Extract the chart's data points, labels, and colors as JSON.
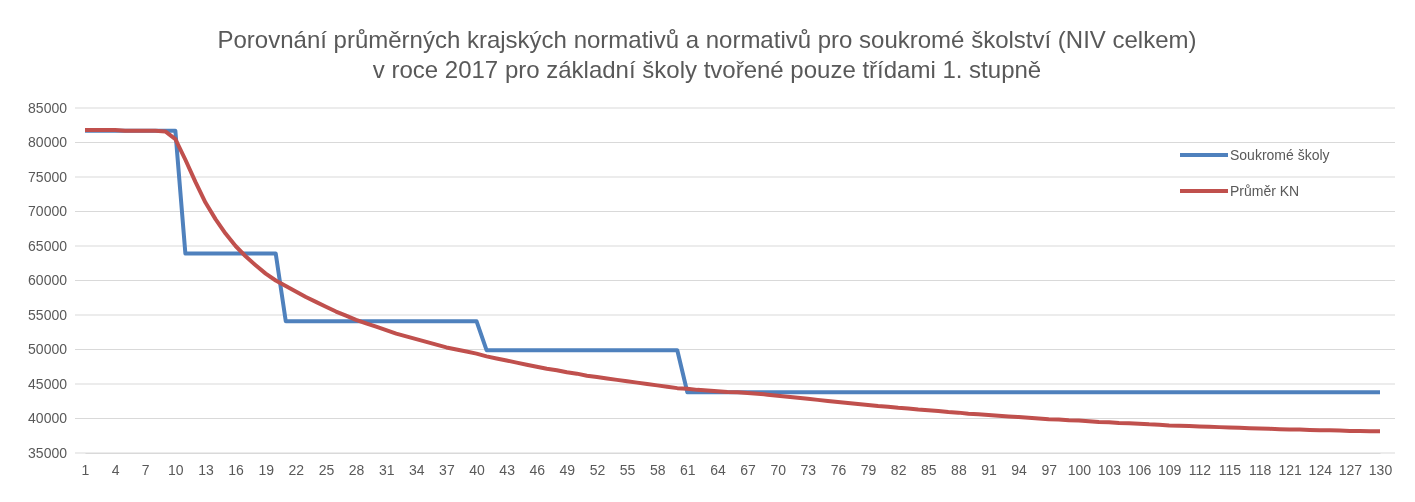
{
  "chart_data": {
    "type": "line",
    "title": "Porovnání průměrných krajských normativů a normativů pro soukromé školství (NIV celkem)\nv roce 2017 pro základní školy tvořené pouze třídami 1. stupně",
    "categories": [
      "1",
      null,
      null,
      "4",
      null,
      null,
      "7",
      null,
      null,
      "10",
      null,
      null,
      "13",
      null,
      null,
      "16",
      null,
      null,
      "19",
      null,
      null,
      "22",
      null,
      null,
      "25",
      null,
      null,
      "28",
      null,
      null,
      "31",
      null,
      null,
      "34",
      null,
      null,
      "37",
      null,
      null,
      "40",
      null,
      null,
      "43",
      null,
      null,
      "46",
      null,
      null,
      "49",
      null,
      null,
      "52",
      null,
      null,
      "55",
      null,
      null,
      "58",
      null,
      null,
      "61",
      null,
      null,
      "64",
      null,
      null,
      "67",
      null,
      null,
      "70",
      null,
      null,
      "73",
      null,
      null,
      "76",
      null,
      null,
      "79",
      null,
      null,
      "82",
      null,
      null,
      "85",
      null,
      null,
      "88",
      null,
      null,
      "91",
      null,
      null,
      "94",
      null,
      null,
      "97",
      null,
      null,
      "100",
      null,
      null,
      "103",
      null,
      null,
      "106",
      null,
      null,
      "109",
      null,
      null,
      "112",
      null,
      null,
      "115",
      null,
      null,
      "118",
      null,
      null,
      "121",
      null,
      null,
      "124",
      null,
      null,
      "127",
      null,
      null,
      "130"
    ],
    "series": [
      {
        "name": "Soukromé školy",
        "color": "#4f81bd",
        "values": [
          81700,
          81700,
          81700,
          81700,
          81700,
          81700,
          81700,
          81700,
          81700,
          81700,
          63900,
          63900,
          63900,
          63900,
          63900,
          63900,
          63900,
          63900,
          63900,
          63900,
          54100,
          54100,
          54100,
          54100,
          54100,
          54100,
          54100,
          54100,
          54100,
          54100,
          54100,
          54100,
          54100,
          54100,
          54100,
          54100,
          54100,
          54100,
          54100,
          54100,
          49900,
          49900,
          49900,
          49900,
          49900,
          49900,
          49900,
          49900,
          49900,
          49900,
          49900,
          49900,
          49900,
          49900,
          49900,
          49900,
          49900,
          49900,
          49900,
          49900,
          43800,
          43800,
          43800,
          43800,
          43800,
          43800,
          43800,
          43800,
          43800,
          43800,
          43800,
          43800,
          43800,
          43800,
          43800,
          43800,
          43800,
          43800,
          43800,
          43800,
          43800,
          43800,
          43800,
          43800,
          43800,
          43800,
          43800,
          43800,
          43800,
          43800,
          43800,
          43800,
          43800,
          43800,
          43800,
          43800,
          43800,
          43800,
          43800,
          43800,
          43800,
          43800,
          43800,
          43800,
          43800,
          43800,
          43800,
          43800,
          43800,
          43800,
          43800,
          43800,
          43800,
          43800,
          43800,
          43800,
          43800,
          43800,
          43800,
          43800,
          43800,
          43800,
          43800,
          43800,
          43800,
          43800,
          43800,
          43800,
          43800,
          43800
        ]
      },
      {
        "name": "Průměr KN",
        "color": "#c0504d",
        "values": [
          81800,
          81800,
          81800,
          81800,
          81700,
          81700,
          81700,
          81700,
          81600,
          80500,
          77500,
          74300,
          71300,
          68900,
          66800,
          65000,
          63500,
          62200,
          61000,
          60000,
          59200,
          58400,
          57600,
          56900,
          56200,
          55500,
          54900,
          54300,
          53800,
          53300,
          52800,
          52300,
          51900,
          51500,
          51100,
          50700,
          50300,
          50000,
          49700,
          49400,
          49000,
          48700,
          48400,
          48100,
          47800,
          47500,
          47200,
          47000,
          46700,
          46500,
          46200,
          46000,
          45800,
          45600,
          45400,
          45200,
          45000,
          44800,
          44600,
          44400,
          44300,
          44150,
          44050,
          43950,
          43850,
          43800,
          43700,
          43600,
          43450,
          43300,
          43150,
          43000,
          42850,
          42700,
          42550,
          42400,
          42250,
          42100,
          41950,
          41800,
          41700,
          41550,
          41450,
          41300,
          41200,
          41100,
          40950,
          40850,
          40700,
          40600,
          40500,
          40400,
          40300,
          40200,
          40100,
          40000,
          39900,
          39850,
          39750,
          39700,
          39600,
          39500,
          39450,
          39350,
          39300,
          39250,
          39150,
          39100,
          39000,
          38950,
          38900,
          38850,
          38800,
          38750,
          38700,
          38650,
          38600,
          38550,
          38500,
          38450,
          38400,
          38400,
          38350,
          38300,
          38300,
          38250,
          38200,
          38200,
          38150,
          38150
        ]
      }
    ],
    "ylim": [
      35000,
      85000
    ],
    "yticks": [
      35000,
      40000,
      45000,
      50000,
      55000,
      60000,
      65000,
      70000,
      75000,
      80000,
      85000
    ],
    "grid": "y",
    "legend": "top right",
    "marker": "none",
    "line_style": "solid"
  }
}
